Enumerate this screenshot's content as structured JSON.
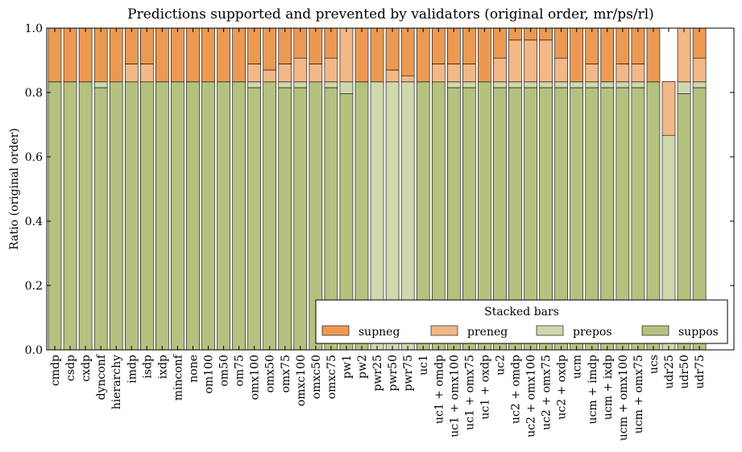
{
  "chart_data": {
    "type": "bar",
    "stacked": true,
    "title": "Predictions supported and prevented by validators (original order, mr/ps/rl)",
    "ylabel": "Ratio (original order)",
    "xlabel": "",
    "ylim": [
      0,
      1.0
    ],
    "yticks": [
      "0.0",
      "0.2",
      "0.4",
      "0.6",
      "0.8",
      "1.0"
    ],
    "legend": {
      "title": "Stacked bars",
      "placement": "lower-right"
    },
    "categories": [
      "cmdp",
      "csdp",
      "cxdp",
      "dynconf",
      "hierarchy",
      "imdp",
      "isdp",
      "ixdp",
      "minconf",
      "none",
      "om100",
      "om50",
      "om75",
      "omx100",
      "omx50",
      "omx75",
      "omxc100",
      "omxc50",
      "omxc75",
      "pw1",
      "pw2",
      "pwr25",
      "pwr50",
      "pwr75",
      "uc1",
      "uc1 + omdp",
      "uc1 + omx100",
      "uc1 + omx75",
      "uc1 + oxdp",
      "uc2",
      "uc2 + omdp",
      "uc2 + omx100",
      "uc2 + omx75",
      "uc2 + oxdp",
      "ucm",
      "ucm + imdp",
      "ucm + ixdp",
      "ucm + omx100",
      "ucm + omx75",
      "ucs",
      "udr25",
      "udr50",
      "udr75"
    ],
    "series": [
      {
        "name": "suppos",
        "color": "#b5c27f",
        "values": [
          0.833,
          0.833,
          0.833,
          0.815,
          0.833,
          0.833,
          0.833,
          0.833,
          0.833,
          0.833,
          0.833,
          0.833,
          0.833,
          0.815,
          0.833,
          0.815,
          0.815,
          0.833,
          0.815,
          0.796,
          0.833,
          0.0,
          0.0,
          0.0,
          0.833,
          0.833,
          0.815,
          0.815,
          0.833,
          0.815,
          0.815,
          0.815,
          0.815,
          0.815,
          0.815,
          0.815,
          0.815,
          0.815,
          0.815,
          0.833,
          0.0,
          0.796,
          0.815
        ]
      },
      {
        "name": "prepos",
        "color": "#cfd8ae",
        "values": [
          0.0,
          0.0,
          0.0,
          0.018,
          0.0,
          0.0,
          0.0,
          0.0,
          0.0,
          0.0,
          0.0,
          0.0,
          0.0,
          0.018,
          0.0,
          0.018,
          0.018,
          0.0,
          0.018,
          0.037,
          0.0,
          0.833,
          0.833,
          0.833,
          0.0,
          0.0,
          0.018,
          0.018,
          0.0,
          0.018,
          0.018,
          0.018,
          0.018,
          0.018,
          0.018,
          0.018,
          0.018,
          0.018,
          0.018,
          0.0,
          0.667,
          0.037,
          0.018
        ]
      },
      {
        "name": "preneg",
        "color": "#f3b887",
        "values": [
          0.0,
          0.0,
          0.0,
          0.0,
          0.0,
          0.056,
          0.056,
          0.0,
          0.0,
          0.0,
          0.0,
          0.0,
          0.0,
          0.056,
          0.037,
          0.056,
          0.074,
          0.056,
          0.074,
          0.167,
          0.0,
          0.0,
          0.037,
          0.019,
          0.0,
          0.056,
          0.056,
          0.056,
          0.0,
          0.074,
          0.13,
          0.13,
          0.13,
          0.074,
          0.0,
          0.056,
          0.0,
          0.056,
          0.056,
          0.0,
          0.167,
          0.167,
          0.074
        ]
      },
      {
        "name": "supneg",
        "color": "#ec9a53",
        "values": [
          0.167,
          0.167,
          0.167,
          0.167,
          0.167,
          0.111,
          0.111,
          0.167,
          0.167,
          0.167,
          0.167,
          0.167,
          0.167,
          0.111,
          0.13,
          0.111,
          0.093,
          0.111,
          0.093,
          0.0,
          0.167,
          0.167,
          0.13,
          0.148,
          0.167,
          0.111,
          0.111,
          0.111,
          0.167,
          0.093,
          0.037,
          0.037,
          0.037,
          0.093,
          0.167,
          0.111,
          0.167,
          0.111,
          0.111,
          0.167,
          0.0,
          0.0,
          0.093
        ]
      }
    ],
    "legend_order": [
      "supneg",
      "preneg",
      "prepos",
      "suppos"
    ]
  }
}
